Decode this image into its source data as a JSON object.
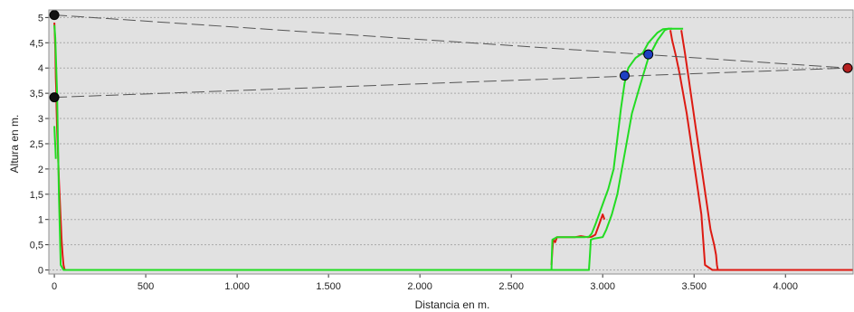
{
  "chart_data": {
    "type": "line",
    "xlabel": "Distancia en m.",
    "ylabel": "Altura en m.",
    "xlim": [
      -30,
      4370
    ],
    "ylim": [
      -0.08,
      5.15
    ],
    "x_ticks": [
      {
        "value": 0,
        "label": "0"
      },
      {
        "value": 500,
        "label": "500"
      },
      {
        "value": 1000,
        "label": "1.000"
      },
      {
        "value": 1500,
        "label": "1.500"
      },
      {
        "value": 2000,
        "label": "2.000"
      },
      {
        "value": 2500,
        "label": "2.500"
      },
      {
        "value": 3000,
        "label": "3.000"
      },
      {
        "value": 3500,
        "label": "3.500"
      },
      {
        "value": 4000,
        "label": "4.000"
      }
    ],
    "y_ticks": [
      {
        "value": 0,
        "label": "0"
      },
      {
        "value": 0.5,
        "label": "0,5"
      },
      {
        "value": 1,
        "label": "1"
      },
      {
        "value": 1.5,
        "label": "1,5"
      },
      {
        "value": 2,
        "label": "2"
      },
      {
        "value": 2.5,
        "label": "2,5"
      },
      {
        "value": 3,
        "label": "3"
      },
      {
        "value": 3.5,
        "label": "3,5"
      },
      {
        "value": 4,
        "label": "4"
      },
      {
        "value": 4.5,
        "label": "4,5"
      },
      {
        "value": 5,
        "label": "5"
      }
    ],
    "grid": {
      "horizontal": true,
      "vertical": false
    },
    "colors": {
      "plot_background": "#e1e1e1",
      "grid": "#a9a9a9",
      "frame": "#8f8f8f",
      "red": "#dd1a12",
      "green": "#22dc22",
      "sightline": "#555555"
    },
    "series": [
      {
        "color": "#dd1a12",
        "style": "solid",
        "x": [
          0,
          5,
          8,
          10,
          12,
          15,
          20,
          25,
          30,
          35,
          40,
          45,
          50,
          55,
          60,
          70,
          100,
          150
        ],
        "y": [
          4.9,
          4.4,
          3.8,
          3.6,
          3.2,
          2.8,
          2.3,
          1.8,
          1.4,
          1.0,
          0.6,
          0.3,
          0.1,
          0.02,
          0.0,
          0.0,
          0.0,
          0.0
        ]
      },
      {
        "color": "#dd1a12",
        "style": "solid",
        "x": [
          2720,
          2725,
          2730,
          2740,
          2750,
          2800,
          2850,
          2880,
          2900,
          2920,
          2940,
          2960,
          2980,
          3000,
          3010
        ],
        "y": [
          0.1,
          0.4,
          0.6,
          0.55,
          0.65,
          0.65,
          0.65,
          0.67,
          0.66,
          0.65,
          0.66,
          0.7,
          0.9,
          1.1,
          1.0
        ]
      },
      {
        "color": "#dd1a12",
        "style": "solid",
        "x": [
          3370,
          3380,
          3400,
          3420,
          3440,
          3460,
          3480,
          3500,
          3520,
          3540,
          3550,
          3560,
          3600,
          3700,
          4000,
          4370
        ],
        "y": [
          4.75,
          4.55,
          4.25,
          3.9,
          3.5,
          3.1,
          2.6,
          2.1,
          1.6,
          1.1,
          0.6,
          0.1,
          0.0,
          0.0,
          0.0,
          0.0
        ]
      },
      {
        "color": "#dd1a12",
        "style": "solid",
        "x": [
          3430,
          3450,
          3470,
          3490,
          3510,
          3530,
          3550,
          3570,
          3590,
          3610,
          3620,
          3625,
          3630
        ],
        "y": [
          4.75,
          4.3,
          3.8,
          3.3,
          2.8,
          2.3,
          1.8,
          1.3,
          0.8,
          0.5,
          0.3,
          0.1,
          0.0
        ]
      },
      {
        "color": "#22dc22",
        "style": "solid",
        "x": [
          0,
          5,
          15,
          25,
          35,
          50,
          100,
          500,
          1000,
          1500,
          2000,
          2500,
          2925,
          2930,
          2935,
          2950,
          3000,
          3020,
          3050,
          3080,
          3100,
          3130,
          3160,
          3200,
          3250,
          3300,
          3340,
          3360,
          3380,
          3440
        ],
        "y": [
          4.85,
          4.6,
          3.5,
          1.5,
          0.1,
          0.0,
          0.0,
          0.0,
          0.0,
          0.0,
          0.0,
          0.0,
          0.0,
          0.3,
          0.6,
          0.62,
          0.65,
          0.8,
          1.1,
          1.5,
          1.9,
          2.5,
          3.1,
          3.6,
          4.2,
          4.55,
          4.75,
          4.78,
          4.78,
          4.78
        ]
      },
      {
        "color": "#22dc22",
        "style": "solid",
        "x": [
          2720,
          2722,
          2725,
          2750,
          2800,
          2850,
          2900,
          2925,
          2940,
          2960,
          2990,
          3010,
          3030,
          3060,
          3080,
          3100,
          3120,
          3140,
          3160,
          3180,
          3220,
          3250,
          3300,
          3330,
          3360,
          3380
        ],
        "y": [
          0.0,
          0.3,
          0.6,
          0.65,
          0.65,
          0.65,
          0.65,
          0.66,
          0.72,
          0.9,
          1.2,
          1.4,
          1.6,
          2.0,
          2.6,
          3.2,
          3.7,
          4.0,
          4.1,
          4.2,
          4.3,
          4.5,
          4.7,
          4.77,
          4.78,
          4.78
        ]
      },
      {
        "color": "#22dc22",
        "style": "solid",
        "x": [
          0,
          3,
          6,
          8
        ],
        "y": [
          2.85,
          2.6,
          2.4,
          2.2
        ]
      },
      {
        "color": "#555555",
        "style": "dashed",
        "x": [
          0,
          4340
        ],
        "y": [
          5.05,
          4.0
        ]
      },
      {
        "color": "#555555",
        "style": "dashed",
        "x": [
          0,
          4340
        ],
        "y": [
          3.42,
          4.0
        ]
      }
    ],
    "markers": [
      {
        "x": 0,
        "y": 5.05,
        "color": "#111111"
      },
      {
        "x": 0,
        "y": 3.42,
        "color": "#111111"
      },
      {
        "x": 3120,
        "y": 3.85,
        "color": "#1f3fc2"
      },
      {
        "x": 3250,
        "y": 4.27,
        "color": "#1f3fc2"
      },
      {
        "x": 4340,
        "y": 4.0,
        "color": "#b52020"
      }
    ]
  }
}
